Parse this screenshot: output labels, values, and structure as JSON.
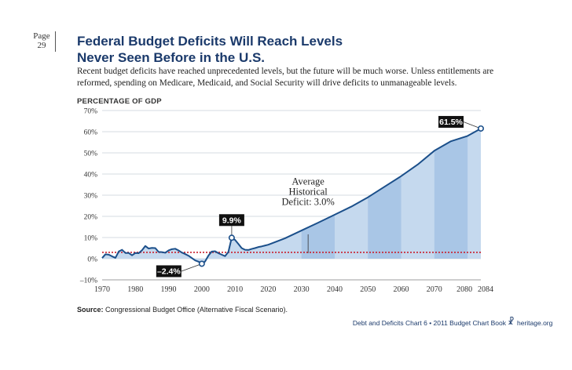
{
  "page": {
    "label": "Page",
    "number": "29"
  },
  "header": {
    "title_line1": "Federal Budget Deficits Will Reach Levels",
    "title_line2": "Never Seen Before in the U.S.",
    "subtitle": "Recent budget deficits have reached unprecedented levels, but the future will be much worse. Unless entitlements are reformed, spending on Medicare, Medicaid, and Social Security will drive deficits to unmanageable levels."
  },
  "footer": {
    "source_label": "Source:",
    "source_text": "Congressional Budget Office (Alternative Fiscal Scenario).",
    "chart_book": "Debt and Deficits Chart 6 • 2011 Budget Chart Book",
    "site": "heritage.org",
    "icon": "liberty-bell-icon"
  },
  "colors": {
    "line": "#1b4f8a",
    "area_light": "#c5d9ee",
    "area_dark": "#a9c6e6",
    "average_line": "#c8202f",
    "grid": "#c9cfd8",
    "label_bg": "#111111"
  },
  "chart_data": {
    "type": "area",
    "title": "Federal Budget Deficits Will Reach Levels Never Seen Before in the U.S.",
    "ylabel": "PERCENTAGE OF GDP",
    "xlabel": "",
    "ylim": [
      -10,
      70
    ],
    "xlim": [
      1970,
      2084
    ],
    "yticks": [
      -10,
      0,
      10,
      20,
      30,
      40,
      50,
      60,
      70
    ],
    "ytick_labels": [
      "–10%",
      "0%",
      "10%",
      "20%",
      "30%",
      "40%",
      "50%",
      "60%",
      "70%"
    ],
    "xticks": [
      1970,
      1980,
      1990,
      2000,
      2010,
      2020,
      2030,
      2040,
      2050,
      2060,
      2070,
      2080,
      2084
    ],
    "xtick_labels": [
      "1970",
      "1980",
      "1990",
      "2000",
      "2010",
      "2020",
      "2030",
      "2040",
      "2050",
      "2060",
      "2070",
      "2080",
      "2084"
    ],
    "grid": true,
    "series": [
      {
        "name": "Deficit as % of GDP",
        "x": [
          1970,
          1971,
          1972,
          1973,
          1974,
          1975,
          1976,
          1977,
          1978,
          1979,
          1980,
          1981,
          1982,
          1983,
          1984,
          1985,
          1986,
          1987,
          1988,
          1989,
          1990,
          1991,
          1992,
          1993,
          1994,
          1995,
          1996,
          1997,
          1998,
          1999,
          2000,
          2001,
          2002,
          2003,
          2004,
          2005,
          2006,
          2007,
          2008,
          2009,
          2010,
          2011,
          2012,
          2013,
          2014,
          2015,
          2016,
          2017,
          2018,
          2019,
          2020,
          2025,
          2030,
          2035,
          2040,
          2045,
          2050,
          2055,
          2060,
          2065,
          2070,
          2075,
          2080,
          2084
        ],
        "values": [
          0.3,
          2.1,
          1.9,
          1.1,
          0.4,
          3.4,
          4.2,
          2.7,
          2.7,
          1.6,
          2.7,
          2.6,
          4.0,
          6.0,
          4.8,
          5.1,
          5.0,
          3.2,
          3.1,
          2.8,
          3.9,
          4.5,
          4.7,
          3.9,
          2.9,
          2.2,
          1.4,
          0.3,
          -0.8,
          -1.4,
          -2.4,
          -1.3,
          1.5,
          3.4,
          3.5,
          2.6,
          1.9,
          1.2,
          3.2,
          9.9,
          8.9,
          7.0,
          5.0,
          4.2,
          4.1,
          4.6,
          5.0,
          5.5,
          5.8,
          6.2,
          6.6,
          9.6,
          13.3,
          17.0,
          20.8,
          24.6,
          29.0,
          34.0,
          39.0,
          44.5,
          51.0,
          55.5,
          58.0,
          61.5
        ]
      }
    ],
    "average": {
      "value": 3.0,
      "label_line1": "Average",
      "label_line2": "Historical",
      "label_line3": "Deficit: 3.0%"
    },
    "callouts": [
      {
        "year": 2009,
        "value": 9.9,
        "label": "9.9%"
      },
      {
        "year": 2000,
        "value": -2.4,
        "label": "–2.4%"
      },
      {
        "year": 2084,
        "value": 61.5,
        "label": "61.5%"
      }
    ]
  }
}
